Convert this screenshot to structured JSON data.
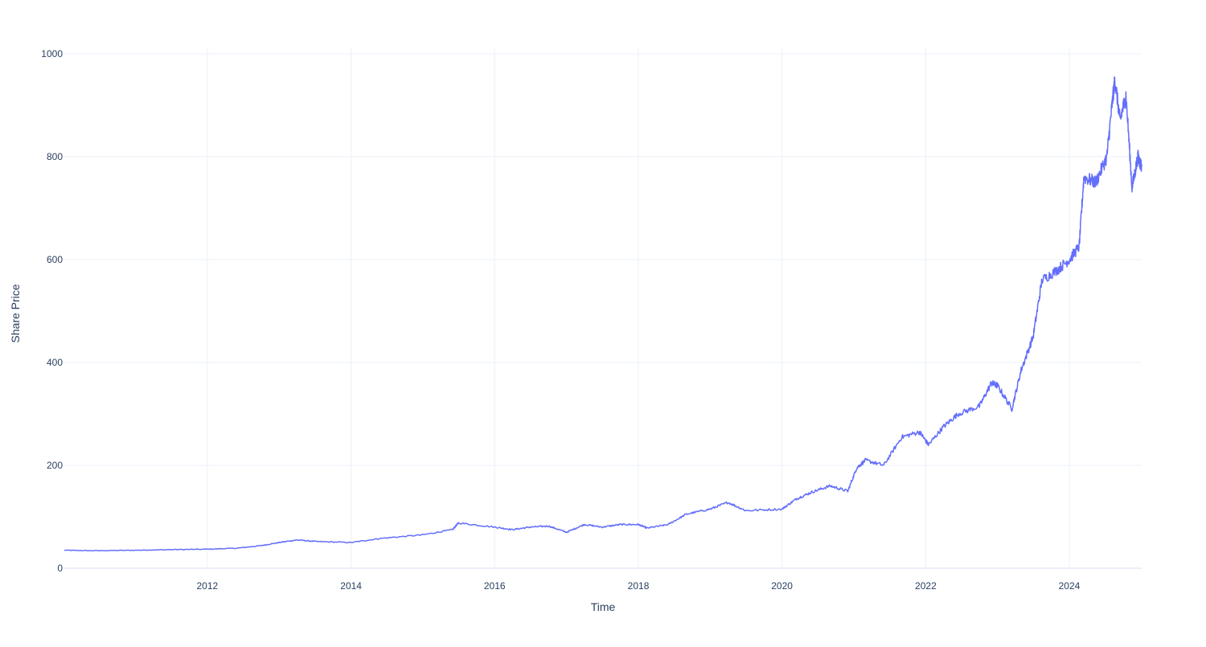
{
  "chart_data": {
    "type": "line",
    "title": "",
    "xlabel": "Time",
    "ylabel": "Share Price",
    "xlim": [
      "2010-01-04",
      "2025-01-03"
    ],
    "ylim": [
      0,
      1000
    ],
    "x_ticks": [
      "2012",
      "2014",
      "2016",
      "2018",
      "2020",
      "2022",
      "2024"
    ],
    "y_ticks": [
      "0",
      "200",
      "400",
      "600",
      "800",
      "1000"
    ],
    "grid": true,
    "legend": "none",
    "line_color": "#636efa",
    "series": [
      {
        "x": [
          "2010-01-04",
          "2010-06-01",
          "2011-01-01",
          "2011-06-01",
          "2012-01-01",
          "2012-06-01",
          "2012-10-01",
          "2013-01-01",
          "2013-04-01",
          "2013-07-01",
          "2014-01-01",
          "2014-06-01",
          "2015-01-01",
          "2015-06-01",
          "2015-07-01",
          "2016-01-01",
          "2016-04-01",
          "2016-07-01",
          "2016-10-01",
          "2017-01-01",
          "2017-04-01",
          "2017-07-01",
          "2017-10-01",
          "2018-01-01",
          "2018-02-15",
          "2018-06-01",
          "2018-09-01",
          "2019-01-01",
          "2019-04-01",
          "2019-07-01",
          "2020-01-01",
          "2020-03-15",
          "2020-06-01",
          "2020-09-01",
          "2020-12-01",
          "2021-01-15",
          "2021-03-01",
          "2021-06-01",
          "2021-09-01",
          "2021-12-01",
          "2022-01-15",
          "2022-04-01",
          "2022-06-15",
          "2022-10-01",
          "2022-12-01",
          "2023-01-01",
          "2023-03-15",
          "2023-05-01",
          "2023-07-01",
          "2023-08-15",
          "2023-11-01",
          "2024-01-01",
          "2024-02-20",
          "2024-03-15",
          "2024-05-15",
          "2024-07-10",
          "2024-08-05",
          "2024-08-20",
          "2024-09-15",
          "2024-10-15",
          "2024-11-15",
          "2024-12-15",
          "2025-01-03"
        ],
        "y": [
          35,
          34,
          35,
          36,
          37,
          39,
          44,
          50,
          55,
          52,
          50,
          58,
          65,
          75,
          88,
          80,
          75,
          80,
          82,
          70,
          85,
          80,
          85,
          85,
          78,
          85,
          105,
          115,
          128,
          112,
          115,
          135,
          148,
          160,
          150,
          195,
          210,
          200,
          255,
          265,
          240,
          275,
          300,
          315,
          360,
          355,
          310,
          385,
          450,
          560,
          580,
          600,
          625,
          760,
          750,
          800,
          900,
          950,
          870,
          920,
          740,
          800,
          780
        ]
      }
    ]
  }
}
